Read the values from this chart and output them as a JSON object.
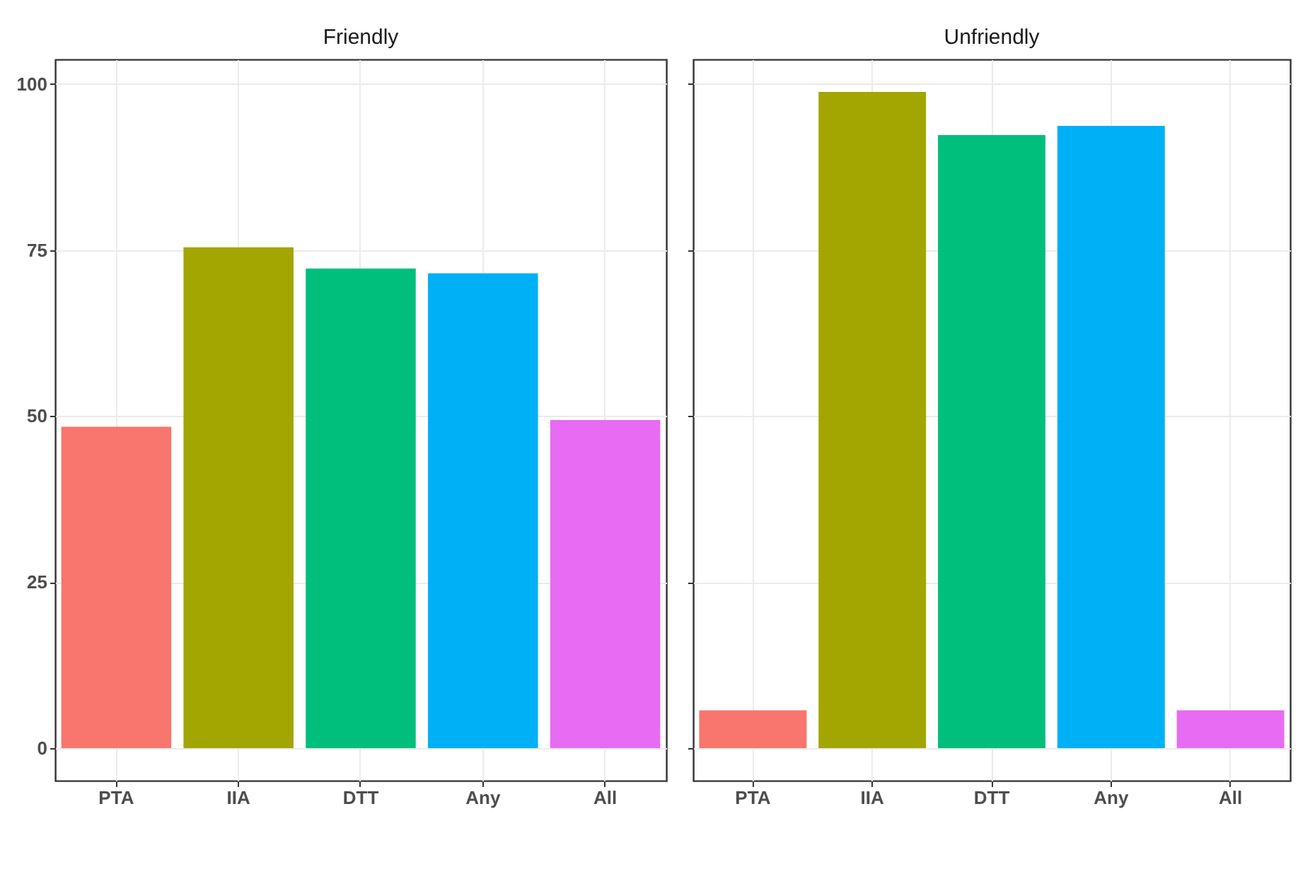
{
  "chart_data": [
    {
      "type": "bar",
      "title": "Friendly",
      "categories": [
        "PTA",
        "IIA",
        "DTT",
        "Any",
        "All"
      ],
      "values": [
        48.4,
        75.4,
        72.2,
        71.5,
        49.4
      ],
      "colors": [
        "#f8766d",
        "#a3a500",
        "#00bf7d",
        "#00b0f6",
        "#e76bf3"
      ],
      "ylim": [
        -4.9,
        103.7
      ],
      "yticks": [
        0,
        25,
        50,
        75,
        100
      ],
      "grid": true,
      "legend": false
    },
    {
      "type": "bar",
      "title": "Unfriendly",
      "categories": [
        "PTA",
        "IIA",
        "DTT",
        "Any",
        "All"
      ],
      "values": [
        5.7,
        98.8,
        92.3,
        93.7,
        5.7
      ],
      "colors": [
        "#f8766d",
        "#a3a500",
        "#00bf7d",
        "#00b0f6",
        "#e76bf3"
      ],
      "ylim": [
        -4.9,
        103.7
      ],
      "yticks": [
        0,
        25,
        50,
        75,
        100
      ],
      "grid": true,
      "legend": false,
      "tick_labels": "x"
    }
  ]
}
